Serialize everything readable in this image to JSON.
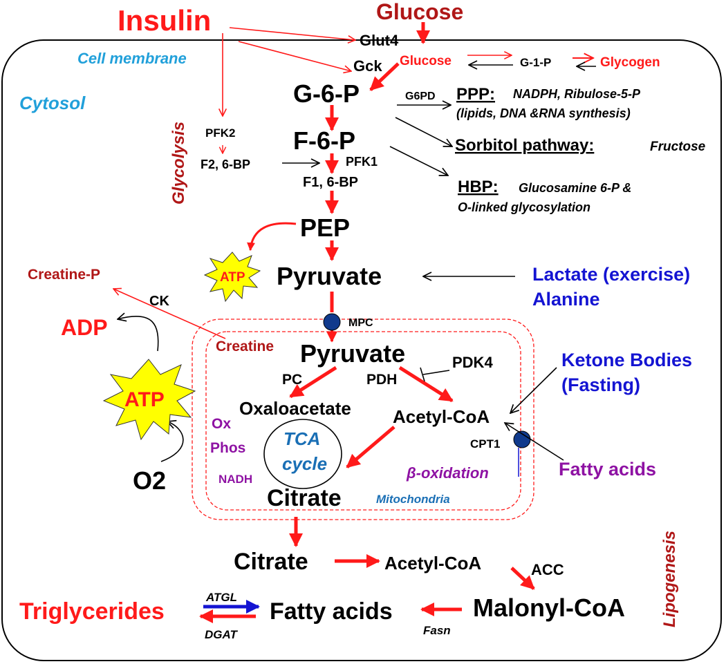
{
  "labels": {
    "insulin": "Insulin",
    "glucose_top": "Glucose",
    "glut4": "Glut4",
    "gck": "Gck",
    "glucose_inner": "Glucose",
    "g1p": "G-1-P",
    "glycogen": "Glycogen",
    "cell_membrane": "Cell membrane",
    "cytosol": "Cytosol",
    "glycolysis": "Glycolysis",
    "g6p": "G-6-P",
    "g6pd": "G6PD",
    "ppp_title": "PPP:",
    "ppp_line1": "NADPH, Ribulose-5-P",
    "ppp_line2": "(lipids, DNA &RNA synthesis)",
    "sorbitol_title": "Sorbitol pathway:",
    "sorbitol_product": "Fructose",
    "hbp_title": "HBP:",
    "hbp_line1": "Glucosamine 6-P &",
    "hbp_line2": "O-linked glycosylation",
    "pfk2": "PFK2",
    "f26bp": "F2, 6-BP",
    "f6p": "F-6-P",
    "pfk1": "PFK1",
    "f16bp": "F1, 6-BP",
    "pep": "PEP",
    "atp_small": "ATP",
    "pyruvate_cyto": "Pyruvate",
    "lactate": "Lactate (exercise)",
    "alanine": "Alanine",
    "creatine_p": "Creatine-P",
    "ck": "CK",
    "adp": "ADP",
    "creatine": "Creatine",
    "mpc": "MPC",
    "pyruvate_mito": "Pyruvate",
    "pdk4": "PDK4",
    "ketone1": "Ketone Bodies",
    "ketone2": "(Fasting)",
    "pc": "PC",
    "pdh": "PDH",
    "atp_big": "ATP",
    "oxaloacetate": "Oxaloacetate",
    "acetyl_coa_mito": "Acetyl-CoA",
    "ox": "Ox",
    "phos": "Phos",
    "tca1": "TCA",
    "tca2": "cycle",
    "cpt1": "CPT1",
    "fatty_acids_in": "Fatty acids",
    "o2": "O2",
    "nadh": "NADH",
    "beta_ox": "β-oxidation",
    "citrate_mito": "Citrate",
    "mitochondria": "Mitochondria",
    "lipogenesis": "Lipogenesis",
    "citrate_cyto": "Citrate",
    "acetyl_coa_cyto": "Acetyl-CoA",
    "acc": "ACC",
    "triglycerides": "Triglycerides",
    "atgl": "ATGL",
    "fatty_acids_cyto": "Fatty acids",
    "malonyl_coa": "Malonyl-CoA",
    "dgat": "DGAT",
    "fasn": "Fasn"
  },
  "colors": {
    "red": "#ff1a1a",
    "dark_red": "#b01717",
    "blue": "#1414d2",
    "cyan": "#21a0da",
    "purple": "#8e12a3",
    "tca_blue": "#1a6fb5",
    "atp_yellow": "#ffff00",
    "mpc_circle": "#103a8c"
  }
}
